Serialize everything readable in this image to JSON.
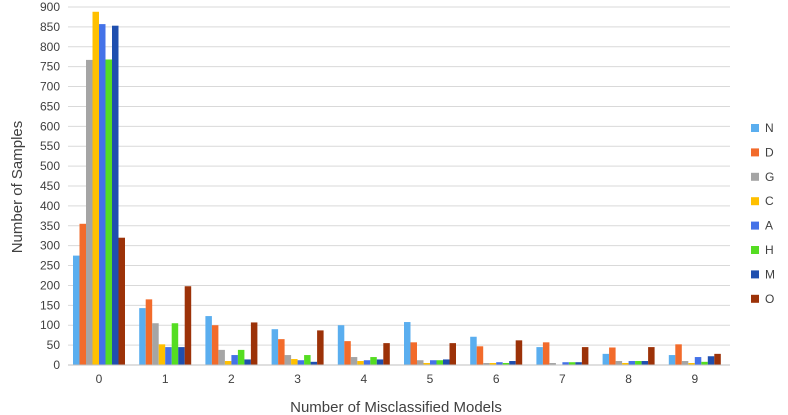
{
  "chart_data": {
    "type": "bar",
    "title": "",
    "xlabel": "Number of Misclassified Models",
    "ylabel": "Number of Samples",
    "ylim": [
      0,
      900
    ],
    "yticks": [
      0,
      50,
      100,
      150,
      200,
      250,
      300,
      350,
      400,
      450,
      500,
      550,
      600,
      650,
      700,
      750,
      800,
      850,
      900
    ],
    "grid": true,
    "legend_position": "right",
    "categories": [
      "0",
      "1",
      "2",
      "3",
      "4",
      "5",
      "6",
      "7",
      "8",
      "9"
    ],
    "series": [
      {
        "name": "N",
        "color": "#5aaeef",
        "values": [
          275,
          143,
          123,
          90,
          100,
          108,
          71,
          45,
          28,
          25
        ]
      },
      {
        "name": "D",
        "color": "#f26b2b",
        "values": [
          355,
          165,
          100,
          65,
          60,
          57,
          47,
          57,
          44,
          52
        ]
      },
      {
        "name": "G",
        "color": "#a5a5a5",
        "values": [
          767,
          105,
          38,
          25,
          20,
          12,
          5,
          5,
          10,
          10
        ]
      },
      {
        "name": "C",
        "color": "#ffc000",
        "values": [
          888,
          52,
          10,
          15,
          10,
          5,
          5,
          0,
          5,
          5
        ]
      },
      {
        "name": "A",
        "color": "#4472e8",
        "values": [
          857,
          45,
          25,
          12,
          12,
          12,
          7,
          7,
          10,
          20
        ]
      },
      {
        "name": "H",
        "color": "#55dd22",
        "values": [
          768,
          105,
          38,
          25,
          20,
          12,
          5,
          7,
          10,
          8
        ]
      },
      {
        "name": "M",
        "color": "#1f4faf",
        "values": [
          853,
          45,
          14,
          8,
          14,
          14,
          10,
          7,
          10,
          22
        ]
      },
      {
        "name": "O",
        "color": "#9c3208",
        "values": [
          320,
          198,
          107,
          87,
          55,
          55,
          62,
          45,
          45,
          28
        ]
      }
    ]
  }
}
